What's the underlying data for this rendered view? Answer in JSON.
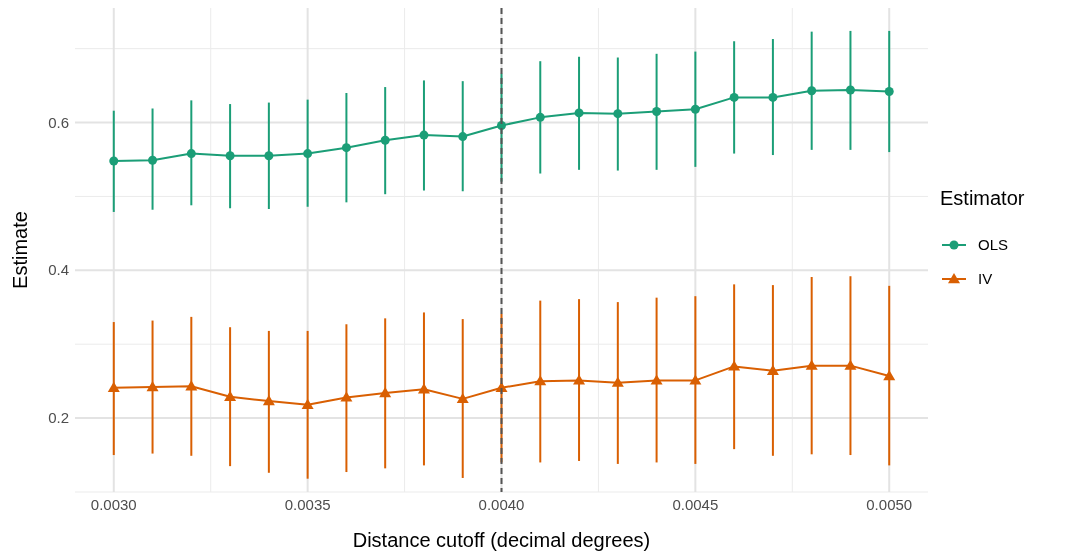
{
  "chart_data": {
    "type": "line",
    "xlabel": "Distance cutoff (decimal degrees)",
    "ylabel": "Estimate",
    "legend_title": "Estimator",
    "legend": "right",
    "grid": true,
    "x": [
      0.003,
      0.0031,
      0.0032,
      0.0033,
      0.0034,
      0.0035,
      0.0036,
      0.0037,
      0.0038,
      0.0039,
      0.004,
      0.0041,
      0.0042,
      0.0043,
      0.0044,
      0.0045,
      0.0046,
      0.0047,
      0.0048,
      0.0049,
      0.005
    ],
    "xlim": [
      0.0029,
      0.0051
    ],
    "xticks": [
      {
        "value": 0.003,
        "label": "0.0030"
      },
      {
        "value": 0.0035,
        "label": "0.0035"
      },
      {
        "value": 0.004,
        "label": "0.0040"
      },
      {
        "value": 0.0045,
        "label": "0.0045"
      },
      {
        "value": 0.005,
        "label": "0.0050"
      }
    ],
    "ylim": [
      0.1,
      0.755
    ],
    "yticks": [
      0.2,
      0.4,
      0.6
    ],
    "ref_lines": [
      {
        "axis": "x",
        "value": 0.004,
        "color": "#555555",
        "line_style": "dashed"
      }
    ],
    "series": [
      {
        "name": "OLS",
        "color": "#1b9e77",
        "marker": "circle",
        "values": [
          0.548,
          0.549,
          0.558,
          0.555,
          0.555,
          0.558,
          0.566,
          0.576,
          0.583,
          0.581,
          0.596,
          0.607,
          0.613,
          0.612,
          0.615,
          0.618,
          0.634,
          0.634,
          0.643,
          0.644,
          0.642
        ],
        "errors": [
          [
            0.479,
            0.616
          ],
          [
            0.482,
            0.619
          ],
          [
            0.488,
            0.63
          ],
          [
            0.484,
            0.625
          ],
          [
            0.483,
            0.627
          ],
          [
            0.486,
            0.631
          ],
          [
            0.492,
            0.64
          ],
          [
            0.503,
            0.648
          ],
          [
            0.508,
            0.657
          ],
          [
            0.507,
            0.656
          ],
          [
            0.52,
            0.666
          ],
          [
            0.531,
            0.683
          ],
          [
            0.536,
            0.689
          ],
          [
            0.535,
            0.688
          ],
          [
            0.536,
            0.693
          ],
          [
            0.54,
            0.696
          ],
          [
            0.558,
            0.71
          ],
          [
            0.556,
            0.713
          ],
          [
            0.563,
            0.723
          ],
          [
            0.563,
            0.724
          ],
          [
            0.56,
            0.724
          ]
        ]
      },
      {
        "name": "IV",
        "color": "#d95f02",
        "marker": "triangle",
        "values": [
          0.241,
          0.242,
          0.243,
          0.229,
          0.223,
          0.218,
          0.228,
          0.234,
          0.239,
          0.226,
          0.241,
          0.25,
          0.251,
          0.248,
          0.251,
          0.251,
          0.27,
          0.264,
          0.271,
          0.271,
          0.257
        ],
        "errors": [
          [
            0.15,
            0.33
          ],
          [
            0.152,
            0.332
          ],
          [
            0.149,
            0.337
          ],
          [
            0.135,
            0.323
          ],
          [
            0.126,
            0.318
          ],
          [
            0.118,
            0.318
          ],
          [
            0.127,
            0.327
          ],
          [
            0.132,
            0.335
          ],
          [
            0.136,
            0.343
          ],
          [
            0.119,
            0.334
          ],
          [
            0.14,
            0.341
          ],
          [
            0.14,
            0.359
          ],
          [
            0.142,
            0.361
          ],
          [
            0.138,
            0.357
          ],
          [
            0.14,
            0.363
          ],
          [
            0.138,
            0.365
          ],
          [
            0.158,
            0.381
          ],
          [
            0.149,
            0.38
          ],
          [
            0.151,
            0.391
          ],
          [
            0.15,
            0.392
          ],
          [
            0.136,
            0.379
          ]
        ]
      }
    ]
  }
}
